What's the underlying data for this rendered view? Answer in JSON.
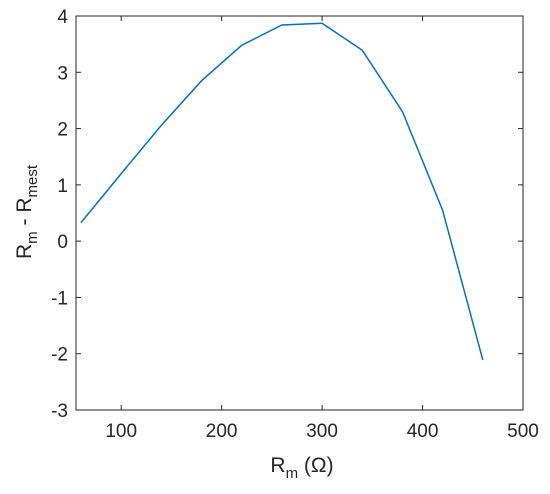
{
  "chart_data": {
    "type": "line",
    "title": "",
    "xlabel": {
      "main": "R",
      "sub": "m",
      "suffix": " (Ω)"
    },
    "ylabel": {
      "main1": "R",
      "sub1": "m",
      "mid": " - R",
      "sub2": "mest"
    },
    "xlim": [
      55,
      500
    ],
    "ylim": [
      -3,
      4
    ],
    "xticks": [
      100,
      200,
      300,
      400,
      500
    ],
    "yticks": [
      -3,
      -2,
      -1,
      0,
      1,
      2,
      3,
      4
    ],
    "grid": false,
    "series": [
      {
        "color": "#0072BD",
        "x": [
          60,
          100,
          140,
          180,
          220,
          260,
          300,
          340,
          380,
          420,
          460
        ],
        "y": [
          0.33,
          1.2,
          2.06,
          2.85,
          3.48,
          3.84,
          3.87,
          3.39,
          2.3,
          0.55,
          -2.11
        ]
      }
    ]
  }
}
